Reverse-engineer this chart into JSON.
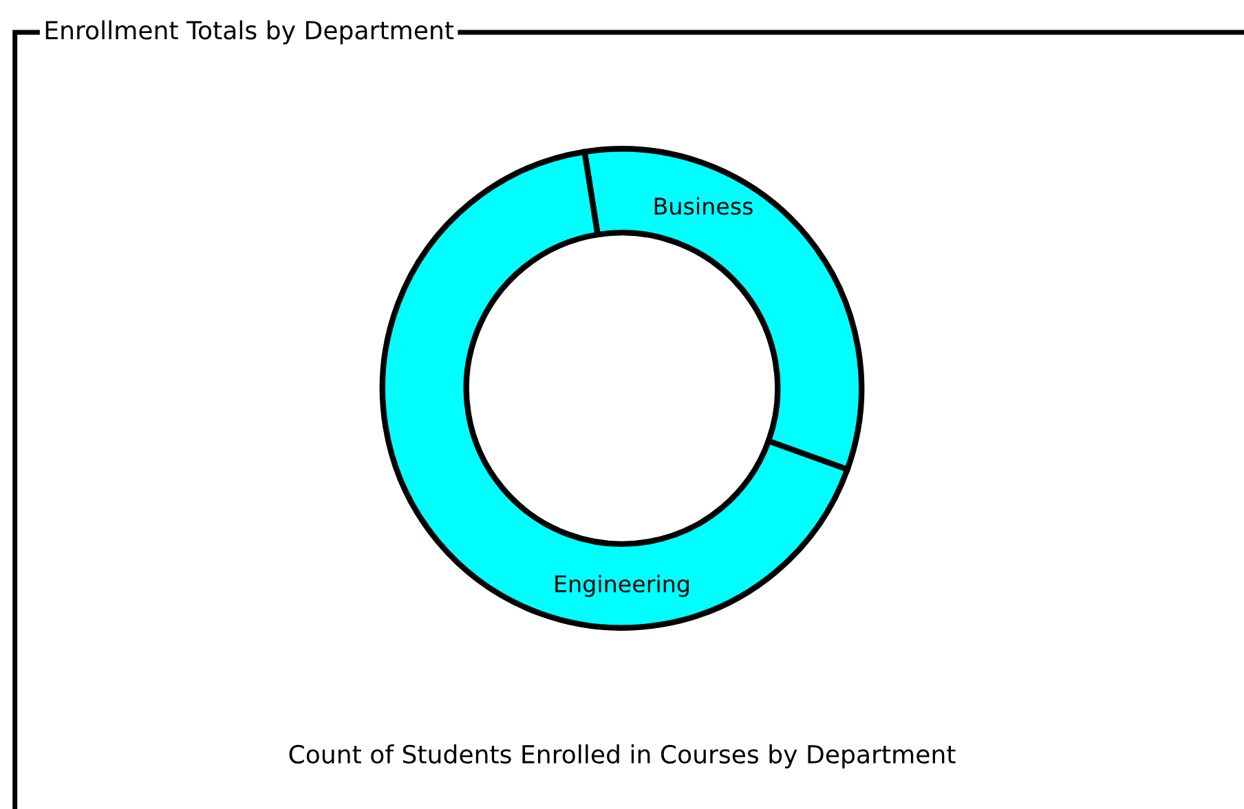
{
  "chart_data": {
    "type": "donut",
    "title": "Enrollment Totals by Department",
    "categories": [
      "Business",
      "Engineering"
    ],
    "values": [
      33,
      67
    ],
    "colors": [
      "#00ffff",
      "#00ffff"
    ],
    "annotations": [
      "Count of Students Enrolled in Courses by Department"
    ],
    "legend": false
  }
}
